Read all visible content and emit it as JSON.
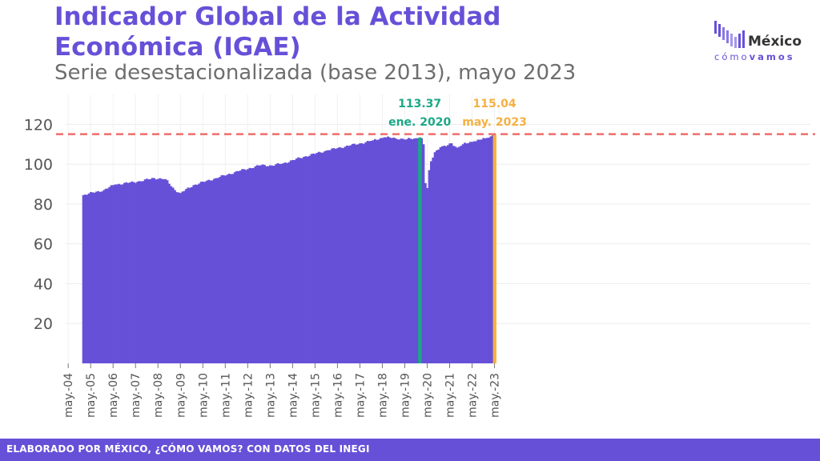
{
  "header": {
    "title_line1": "Indicador Global de la Actividad",
    "title_line2": "Económica (IGAE)",
    "subtitle": "Serie desestacionalizada (base 2013), mayo 2023"
  },
  "logo": {
    "word": "México",
    "sub_light": "cómo",
    "sub_bold": "vamos"
  },
  "footer": {
    "text": "ELABORADO POR MÉXICO, ¿CÓMO VAMOS? CON DATOS DEL INEGI"
  },
  "colors": {
    "bars": "#6750d8",
    "reference_line": "#f06c6c",
    "highlight_jan2020": "#1aa886",
    "highlight_may2023": "#f5b041",
    "title": "#6750d8"
  },
  "chart_data": {
    "type": "bar",
    "title": "Indicador Global de la Actividad Económica (IGAE)",
    "subtitle": "Serie desestacionalizada (base 2013), mayo 2023",
    "x_start": "2004-05",
    "x_ticks": [
      "may.-04",
      "may.-05",
      "may.-06",
      "may.-07",
      "may.-08",
      "may.-09",
      "may.-10",
      "may.-11",
      "may.-12",
      "may.-13",
      "may.-14",
      "may.-15",
      "may.-16",
      "may.-17",
      "may.-18",
      "may.-19",
      "may.-20",
      "may.-21",
      "may.-22",
      "may.-23"
    ],
    "y_ticks": [
      20,
      40,
      60,
      80,
      100,
      120
    ],
    "ylim": [
      0,
      135
    ],
    "grid": true,
    "reference_line": {
      "value": 115.04,
      "style": "dashed"
    },
    "highlights": [
      {
        "date": "ene. 2020",
        "value": "113.37",
        "label": "ene. 2020"
      },
      {
        "date": "may. 2023",
        "value": "115.04",
        "label": "may. 2023"
      }
    ],
    "anchors": [
      [
        "2005-01",
        84.5
      ],
      [
        "2005-12",
        87.0
      ],
      [
        "2006-06",
        89.8
      ],
      [
        "2007-06",
        91.2
      ],
      [
        "2008-03",
        93.0
      ],
      [
        "2008-09",
        92.5
      ],
      [
        "2009-02",
        87.0
      ],
      [
        "2009-05",
        85.5
      ],
      [
        "2009-12",
        89.5
      ],
      [
        "2010-12",
        93.0
      ],
      [
        "2011-12",
        96.5
      ],
      [
        "2012-12",
        99.5
      ],
      [
        "2013-06",
        99.3
      ],
      [
        "2013-12",
        100.5
      ],
      [
        "2014-12",
        104.0
      ],
      [
        "2015-12",
        107.0
      ],
      [
        "2016-12",
        109.5
      ],
      [
        "2017-06",
        110.5
      ],
      [
        "2017-12",
        112.0
      ],
      [
        "2018-06",
        113.5
      ],
      [
        "2018-12",
        113.0
      ],
      [
        "2019-06",
        112.5
      ],
      [
        "2019-12",
        113.0
      ],
      [
        "2020-01",
        113.37
      ],
      [
        "2020-02",
        113.0
      ],
      [
        "2020-03",
        110.0
      ],
      [
        "2020-04",
        90.5
      ],
      [
        "2020-05",
        88.0
      ],
      [
        "2020-06",
        97.0
      ],
      [
        "2020-07",
        101.5
      ],
      [
        "2020-09",
        106.0
      ],
      [
        "2020-12",
        108.5
      ],
      [
        "2021-03",
        109.0
      ],
      [
        "2021-06",
        110.5
      ],
      [
        "2021-09",
        108.3
      ],
      [
        "2021-12",
        110.0
      ],
      [
        "2022-06",
        111.5
      ],
      [
        "2022-12",
        113.0
      ],
      [
        "2023-03",
        114.0
      ],
      [
        "2023-05",
        115.04
      ]
    ]
  }
}
